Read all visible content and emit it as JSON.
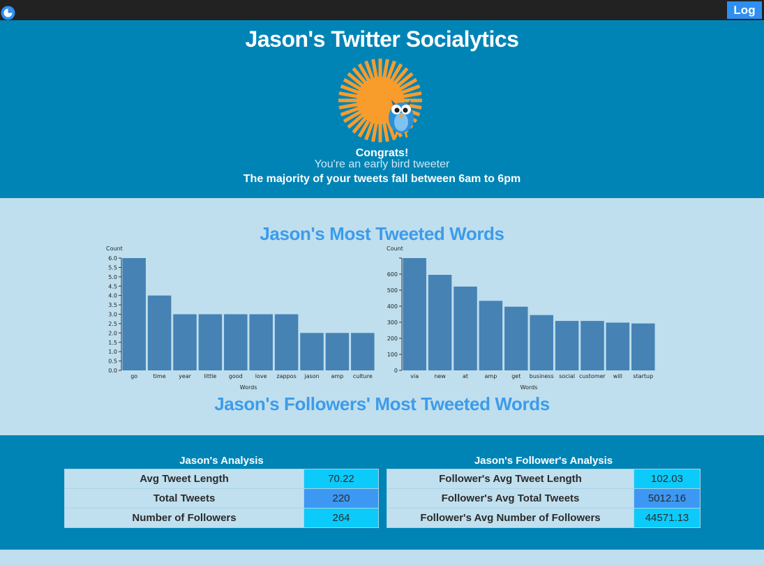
{
  "topbar": {
    "logo_icon": "pie-chart-icon",
    "login_label": "Log in"
  },
  "hero": {
    "title": "Jason's Twitter Socialytics",
    "art_icon": "sun-with-owl-bird-icon",
    "congrats": "Congrats!",
    "badge": "You're an early bird tweeter",
    "summary": "The majority of your tweets fall between 6am to 6pm"
  },
  "words": {
    "title": "Jason's Most Tweeted Words",
    "followers_title": "Jason's Followers' Most Tweeted Words"
  },
  "colors": {
    "bar": "#4682b4",
    "hero_bg": "#0084b6",
    "light_bg": "#bfdfee",
    "accent_text": "#3d9bea",
    "sun": "#f89c2c"
  },
  "chart_data": [
    {
      "type": "bar",
      "title": "",
      "xlabel": "Words",
      "ylabel": "Count",
      "categories": [
        "go",
        "time",
        "year",
        "little",
        "good",
        "love",
        "zappos",
        "jason",
        "amp",
        "culture"
      ],
      "values": [
        6,
        4,
        3,
        3,
        3,
        3,
        3,
        2,
        2,
        2
      ],
      "ylim": [
        0,
        6
      ],
      "yticks": [
        "0.0",
        "0.5",
        "1.0",
        "1.5",
        "2.0",
        "2.5",
        "3.0",
        "3.5",
        "4.0",
        "4.5",
        "5.0",
        "5.5",
        "6.0"
      ],
      "grid": false
    },
    {
      "type": "bar",
      "title": "",
      "xlabel": "Words",
      "ylabel": "Count",
      "categories": [
        "via",
        "new",
        "at",
        "amp",
        "get",
        "business",
        "social",
        "customer",
        "will",
        "startup"
      ],
      "values": [
        670,
        570,
        500,
        415,
        380,
        330,
        295,
        295,
        285,
        280
      ],
      "ylim": [
        0,
        670
      ],
      "yticks": [
        "0",
        "100",
        "200",
        "300",
        "400",
        "500",
        "600",
        ""
      ],
      "grid": false
    }
  ],
  "analysis": {
    "jason": {
      "title": "Jason's Analysis",
      "rows": [
        {
          "label": "Avg Tweet Length",
          "value": "70.22"
        },
        {
          "label": "Total Tweets",
          "value": "220"
        },
        {
          "label": "Number of Followers",
          "value": "264"
        }
      ]
    },
    "followers": {
      "title": "Jason's Follower's Analysis",
      "rows": [
        {
          "label": "Follower's Avg Tweet Length",
          "value": "102.03"
        },
        {
          "label": "Follower's Avg Total Tweets",
          "value": "5012.16"
        },
        {
          "label": "Follower's Avg Number of Followers",
          "value": "44571.13"
        }
      ]
    }
  }
}
